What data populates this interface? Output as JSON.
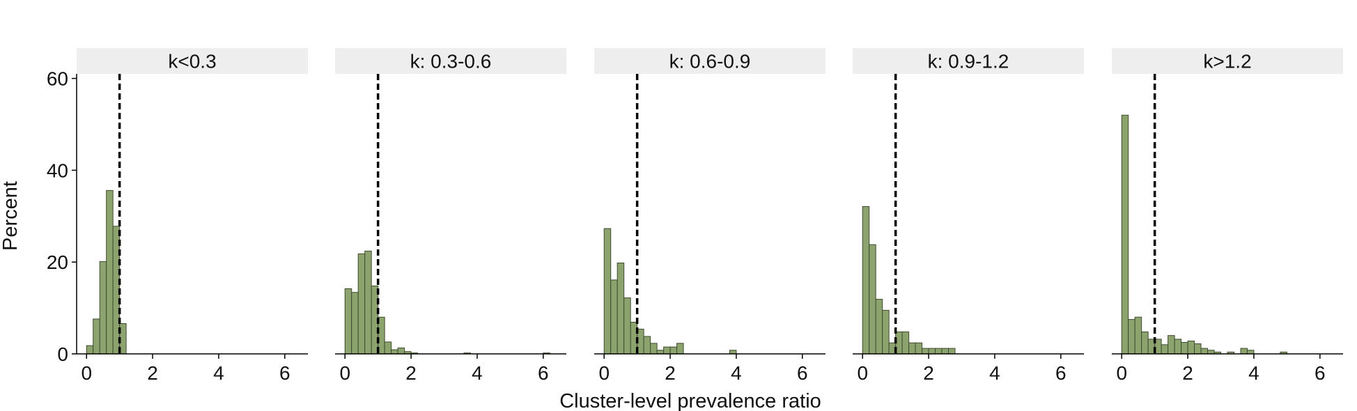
{
  "chart_data": {
    "type": "bar",
    "layout": "faceted histograms",
    "xlabel": "Cluster-level prevalence ratio",
    "ylabel": "Percent",
    "xlim": [
      -0.3,
      6.7
    ],
    "ylim": [
      0,
      61
    ],
    "x_ticks": [
      0,
      2,
      4,
      6
    ],
    "y_ticks": [
      0,
      20,
      40,
      60
    ],
    "bin_width": 0.2,
    "reference_line_x": 1,
    "grid": false,
    "colors": {
      "bar_fill": "#8ca36e",
      "bar_stroke": "#3e4b30",
      "strip_bg": "#eeeeee",
      "reference_line": "#000000",
      "axis": "#000000"
    },
    "panels": [
      {
        "label": "k<0.3",
        "bars": [
          {
            "x": 0.1,
            "y": 1.8
          },
          {
            "x": 0.3,
            "y": 7.6
          },
          {
            "x": 0.5,
            "y": 20.1
          },
          {
            "x": 0.7,
            "y": 35.6
          },
          {
            "x": 0.9,
            "y": 27.8
          },
          {
            "x": 1.1,
            "y": 6.6
          }
        ]
      },
      {
        "label": "k: 0.3-0.6",
        "bars": [
          {
            "x": 0.1,
            "y": 14.2
          },
          {
            "x": 0.3,
            "y": 13.4
          },
          {
            "x": 0.5,
            "y": 21.8
          },
          {
            "x": 0.7,
            "y": 22.4
          },
          {
            "x": 0.9,
            "y": 14.8
          },
          {
            "x": 1.1,
            "y": 8.0
          },
          {
            "x": 1.3,
            "y": 2.6
          },
          {
            "x": 1.5,
            "y": 0.9
          },
          {
            "x": 1.7,
            "y": 1.3
          },
          {
            "x": 1.9,
            "y": 0.5
          },
          {
            "x": 2.1,
            "y": 0.2
          },
          {
            "x": 3.7,
            "y": 0.2
          },
          {
            "x": 6.1,
            "y": 0.2
          }
        ]
      },
      {
        "label": "k: 0.6-0.9",
        "bars": [
          {
            "x": 0.1,
            "y": 27.3
          },
          {
            "x": 0.3,
            "y": 16.1
          },
          {
            "x": 0.5,
            "y": 19.8
          },
          {
            "x": 0.7,
            "y": 12.2
          },
          {
            "x": 0.9,
            "y": 6.9
          },
          {
            "x": 1.1,
            "y": 5.4
          },
          {
            "x": 1.3,
            "y": 3.8
          },
          {
            "x": 1.5,
            "y": 2.3
          },
          {
            "x": 1.7,
            "y": 0.8
          },
          {
            "x": 1.9,
            "y": 1.5
          },
          {
            "x": 2.1,
            "y": 1.5
          },
          {
            "x": 2.3,
            "y": 2.3
          },
          {
            "x": 3.9,
            "y": 0.8
          }
        ]
      },
      {
        "label": "k: 0.9-1.2",
        "bars": [
          {
            "x": 0.1,
            "y": 32.1
          },
          {
            "x": 0.3,
            "y": 23.8
          },
          {
            "x": 0.5,
            "y": 11.9
          },
          {
            "x": 0.7,
            "y": 9.5
          },
          {
            "x": 0.9,
            "y": 2.4
          },
          {
            "x": 1.1,
            "y": 4.8
          },
          {
            "x": 1.3,
            "y": 4.8
          },
          {
            "x": 1.5,
            "y": 2.4
          },
          {
            "x": 1.7,
            "y": 2.4
          },
          {
            "x": 1.9,
            "y": 1.2
          },
          {
            "x": 2.1,
            "y": 1.2
          },
          {
            "x": 2.3,
            "y": 1.2
          },
          {
            "x": 2.5,
            "y": 1.2
          },
          {
            "x": 2.7,
            "y": 1.2
          }
        ]
      },
      {
        "label": "k>1.2",
        "bars": [
          {
            "x": 0.1,
            "y": 52.0
          },
          {
            "x": 0.3,
            "y": 7.5
          },
          {
            "x": 0.5,
            "y": 8.0
          },
          {
            "x": 0.7,
            "y": 4.8
          },
          {
            "x": 0.9,
            "y": 3.2
          },
          {
            "x": 1.1,
            "y": 3.2
          },
          {
            "x": 1.3,
            "y": 2.0
          },
          {
            "x": 1.5,
            "y": 4.0
          },
          {
            "x": 1.7,
            "y": 3.2
          },
          {
            "x": 1.9,
            "y": 2.5
          },
          {
            "x": 2.1,
            "y": 2.8
          },
          {
            "x": 2.3,
            "y": 2.2
          },
          {
            "x": 2.5,
            "y": 1.2
          },
          {
            "x": 2.7,
            "y": 0.8
          },
          {
            "x": 2.9,
            "y": 0.4
          },
          {
            "x": 3.3,
            "y": 0.4
          },
          {
            "x": 3.7,
            "y": 1.2
          },
          {
            "x": 3.9,
            "y": 0.8
          },
          {
            "x": 4.9,
            "y": 0.4
          }
        ]
      }
    ]
  }
}
